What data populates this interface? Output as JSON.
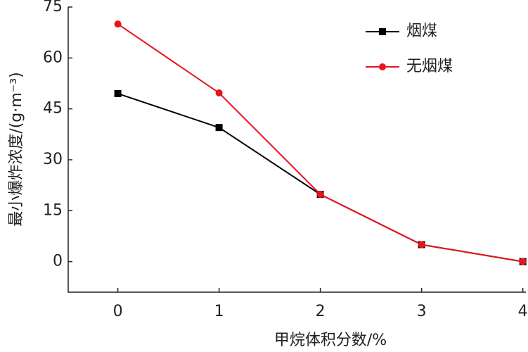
{
  "chart_data": {
    "type": "line",
    "x_label": "甲烷体积分数/%",
    "y_label": "最小爆炸浓度/(g·m⁻³)",
    "x": [
      0,
      1,
      2,
      3,
      4
    ],
    "xlim": [
      -0.49,
      4.03
    ],
    "xticks": [
      0,
      1,
      2,
      3,
      4
    ],
    "ylim": [
      -9,
      75
    ],
    "yticks": [
      0,
      15,
      30,
      45,
      60,
      75
    ],
    "legend": "upper right",
    "series": [
      {
        "name": "烟煤",
        "color": "#000000",
        "marker": "square",
        "values": [
          49.5,
          39.5,
          19.8,
          5,
          0
        ]
      },
      {
        "name": "无烟煤",
        "color": "#e8141c",
        "marker": "circle",
        "values": [
          70,
          49.7,
          19.8,
          5,
          0
        ]
      }
    ]
  }
}
